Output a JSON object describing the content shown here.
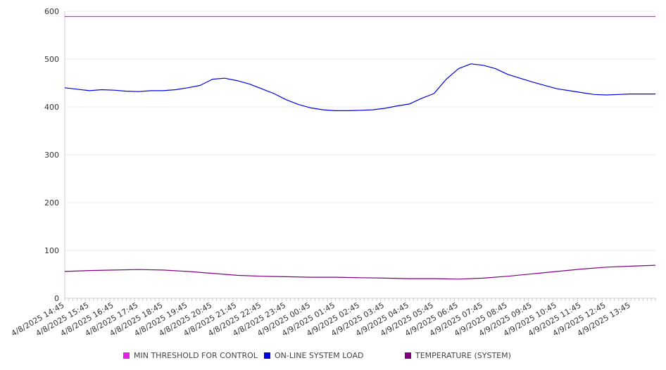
{
  "chart_data": {
    "type": "line",
    "title": "",
    "xlabel": "",
    "ylabel": "",
    "ylim": [
      0,
      600
    ],
    "y_ticks": [
      "0",
      "100",
      "200",
      "300",
      "400",
      "500",
      "600"
    ],
    "x_tick_labels": [
      "4/8/2025 14:45",
      "4/8/2025 15:45",
      "4/8/2025 16:45",
      "4/8/2025 17:45",
      "4/8/2025 18:45",
      "4/8/2025 19:45",
      "4/8/2025 20:45",
      "4/8/2025 21:45",
      "4/8/2025 22:45",
      "4/8/2025 23:45",
      "4/9/2025 00:45",
      "4/9/2025 01:45",
      "4/9/2025 02:45",
      "4/9/2025 03:45",
      "4/9/2025 04:45",
      "4/9/2025 05:45",
      "4/9/2025 06:45",
      "4/9/2025 07:45",
      "4/9/2025 08:45",
      "4/9/2025 09:45",
      "4/9/2025 10:45",
      "4/9/2025 11:45",
      "4/9/2025 12:45",
      "4/9/2025 13:45"
    ],
    "x_start": "4/8/2025 14:45",
    "x_end": "4/9/2025 14:45",
    "grid": true,
    "legend_position": "bottom",
    "series": [
      {
        "name": "MIN THRESHOLD FOR CONTROL",
        "color": "#e020e0",
        "x": [
          "4/8/2025 14:45",
          "4/9/2025 14:45"
        ],
        "values": [
          589,
          589
        ]
      },
      {
        "name": "ON-LINE SYSTEM LOAD",
        "color": "#0000e0",
        "x": [
          "4/8/2025 14:45",
          "4/8/2025 15:15",
          "4/8/2025 15:45",
          "4/8/2025 16:15",
          "4/8/2025 16:45",
          "4/8/2025 17:15",
          "4/8/2025 17:45",
          "4/8/2025 18:15",
          "4/8/2025 18:45",
          "4/8/2025 19:15",
          "4/8/2025 19:45",
          "4/8/2025 20:15",
          "4/8/2025 20:45",
          "4/8/2025 21:15",
          "4/8/2025 21:45",
          "4/8/2025 22:15",
          "4/8/2025 22:45",
          "4/8/2025 23:15",
          "4/8/2025 23:45",
          "4/9/2025 00:15",
          "4/9/2025 00:45",
          "4/9/2025 01:15",
          "4/9/2025 01:45",
          "4/9/2025 02:15",
          "4/9/2025 02:45",
          "4/9/2025 03:15",
          "4/9/2025 03:45",
          "4/9/2025 04:15",
          "4/9/2025 04:45",
          "4/9/2025 05:15",
          "4/9/2025 05:45",
          "4/9/2025 06:15",
          "4/9/2025 06:45",
          "4/9/2025 07:15",
          "4/9/2025 07:45",
          "4/9/2025 08:15",
          "4/9/2025 08:45",
          "4/9/2025 09:15",
          "4/9/2025 09:45",
          "4/9/2025 10:15",
          "4/9/2025 10:45",
          "4/9/2025 11:15",
          "4/9/2025 11:45",
          "4/9/2025 12:15",
          "4/9/2025 12:45",
          "4/9/2025 13:15",
          "4/9/2025 13:45",
          "4/9/2025 14:15",
          "4/9/2025 14:45"
        ],
        "values": [
          440,
          437,
          434,
          436,
          435,
          433,
          432,
          434,
          434,
          436,
          440,
          445,
          458,
          460,
          455,
          448,
          438,
          428,
          415,
          405,
          398,
          394,
          392,
          392,
          393,
          394,
          397,
          402,
          406,
          418,
          428,
          458,
          480,
          490,
          487,
          480,
          468,
          460,
          452,
          445,
          438,
          434,
          430,
          426,
          425,
          426,
          427,
          427,
          427
        ]
      },
      {
        "name": "TEMPERATURE (SYSTEM)",
        "color": "#800080",
        "x": [
          "4/8/2025 14:45",
          "4/8/2025 15:45",
          "4/8/2025 16:45",
          "4/8/2025 17:45",
          "4/8/2025 18:45",
          "4/8/2025 19:45",
          "4/8/2025 20:45",
          "4/8/2025 21:45",
          "4/8/2025 22:45",
          "4/8/2025 23:45",
          "4/9/2025 00:45",
          "4/9/2025 01:45",
          "4/9/2025 02:45",
          "4/9/2025 03:45",
          "4/9/2025 04:45",
          "4/9/2025 05:45",
          "4/9/2025 06:45",
          "4/9/2025 07:45",
          "4/9/2025 08:45",
          "4/9/2025 09:45",
          "4/9/2025 10:45",
          "4/9/2025 11:45",
          "4/9/2025 12:45",
          "4/9/2025 13:45",
          "4/9/2025 14:45"
        ],
        "values": [
          56,
          58,
          59,
          60,
          59,
          56,
          52,
          48,
          46,
          45,
          44,
          44,
          43,
          42,
          41,
          41,
          40,
          42,
          46,
          51,
          56,
          61,
          65,
          67,
          69
        ]
      }
    ]
  }
}
